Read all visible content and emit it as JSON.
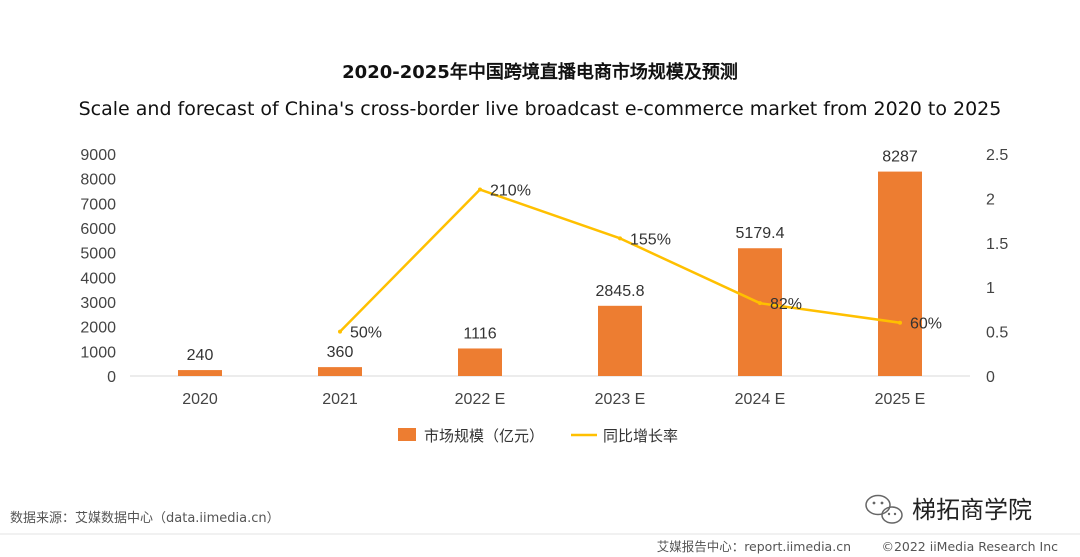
{
  "chart_data": {
    "type": "bar",
    "title": "2020-2025年中国跨境直播电商市场规模及预测",
    "subtitle": "Scale and forecast of China's cross-border live broadcast e-commerce market from 2020 to 2025",
    "categories": [
      "2020",
      "2021",
      "2022 E",
      "2023 E",
      "2024 E",
      "2025 E"
    ],
    "series": [
      {
        "name": "市场规模（亿元）",
        "type": "bar",
        "axis": "left",
        "values": [
          240,
          360,
          1116,
          2845.8,
          5179.4,
          8287
        ],
        "labels": [
          "240",
          "360",
          "1116",
          "2845.8",
          "5179.4",
          "8287"
        ],
        "color": "#ED7D31"
      },
      {
        "name": "同比增长率",
        "type": "line",
        "axis": "right",
        "values": [
          null,
          0.5,
          2.1,
          1.55,
          0.82,
          0.6
        ],
        "labels": [
          "",
          "50%",
          "210%",
          "155%",
          "82%",
          "60%"
        ],
        "color": "#FFC000"
      }
    ],
    "y_left": {
      "min": 0,
      "max": 9000,
      "ticks": [
        "0",
        "1000",
        "2000",
        "3000",
        "4000",
        "5000",
        "6000",
        "7000",
        "8000",
        "9000"
      ]
    },
    "y_right": {
      "min": 0,
      "max": 2.5,
      "ticks": [
        "0",
        "0.5",
        "1",
        "1.5",
        "2",
        "2.5"
      ]
    },
    "grid": false,
    "legend_position": "bottom"
  },
  "footer": {
    "source": "数据来源：艾媒数据中心（data.iimedia.cn）",
    "report": "艾媒报告中心：report.iimedia.cn",
    "copyright": "©2022  iiMedia Research  Inc"
  },
  "watermark": {
    "text": "梯拓商学院",
    "icon": "wechat-icon"
  }
}
